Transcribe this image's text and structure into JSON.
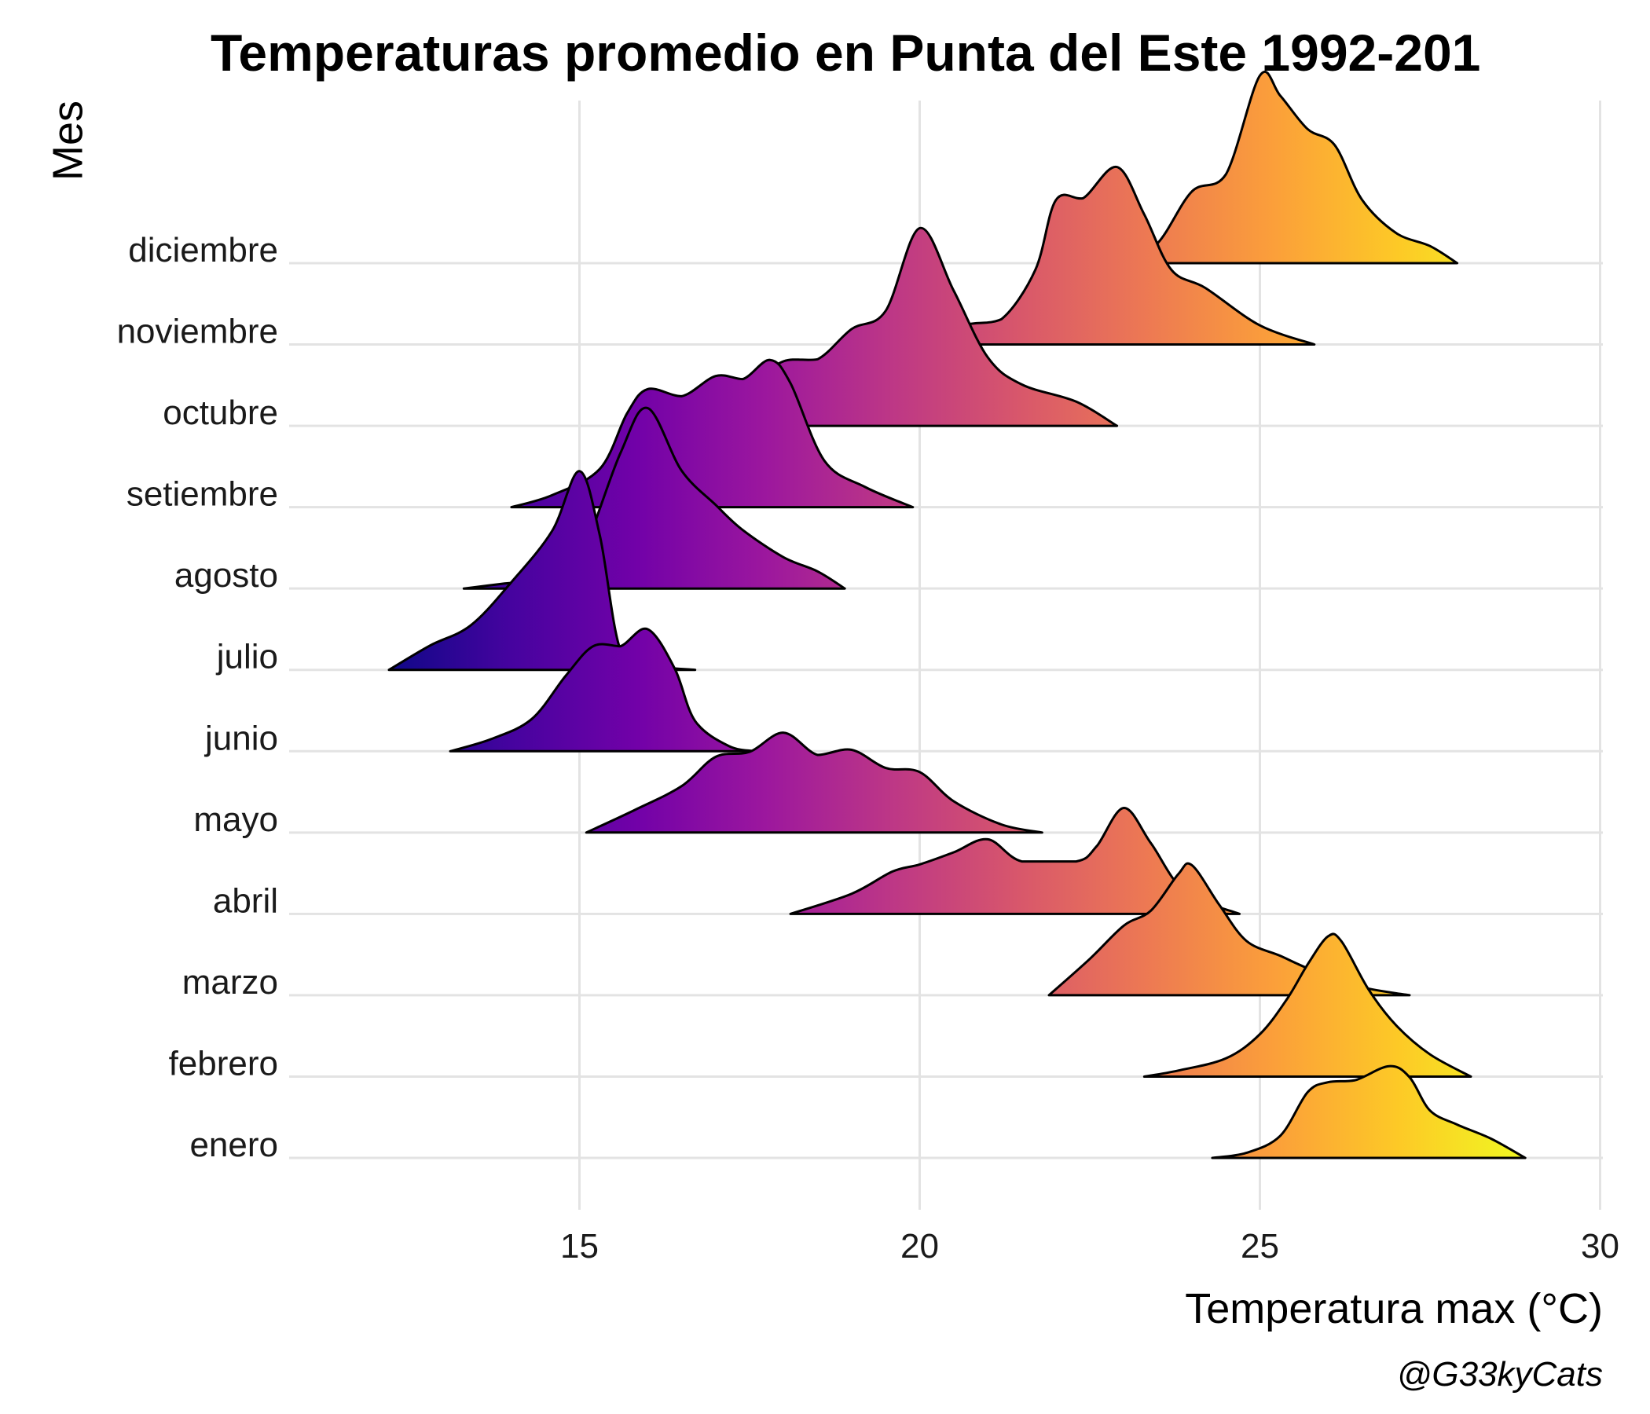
{
  "chart_data": {
    "type": "ridgeline",
    "title": "Temperaturas promedio en Punta del Este 1992-201",
    "xlabel": "Temperatura max (°C)",
    "ylabel": "Mes",
    "caption": "@G33kyCats",
    "x_ticks": [
      15,
      20,
      25,
      30
    ],
    "xlim": [
      10.8,
      30.2
    ],
    "grid": true,
    "colormap": "plasma",
    "categories": [
      "enero",
      "febrero",
      "marzo",
      "abril",
      "mayo",
      "junio",
      "julio",
      "agosto",
      "setiembre",
      "octubre",
      "noviembre",
      "diciembre"
    ],
    "series": [
      {
        "name": "enero",
        "density": [
          [
            24.3,
            0
          ],
          [
            24.8,
            0.05
          ],
          [
            25.3,
            0.22
          ],
          [
            25.7,
            0.65
          ],
          [
            26.0,
            0.75
          ],
          [
            26.4,
            0.77
          ],
          [
            26.9,
            0.91
          ],
          [
            27.2,
            0.8
          ],
          [
            27.5,
            0.47
          ],
          [
            27.9,
            0.33
          ],
          [
            28.4,
            0.19
          ],
          [
            28.9,
            0
          ]
        ]
      },
      {
        "name": "febrero",
        "density": [
          [
            23.3,
            0
          ],
          [
            23.8,
            0.06
          ],
          [
            24.5,
            0.18
          ],
          [
            25.0,
            0.42
          ],
          [
            25.4,
            0.77
          ],
          [
            25.7,
            1.11
          ],
          [
            26.0,
            1.39
          ],
          [
            26.2,
            1.34
          ],
          [
            26.6,
            0.86
          ],
          [
            27.0,
            0.51
          ],
          [
            27.5,
            0.22
          ],
          [
            28.1,
            0
          ]
        ]
      },
      {
        "name": "marzo",
        "density": [
          [
            21.9,
            0
          ],
          [
            22.5,
            0.36
          ],
          [
            23.0,
            0.69
          ],
          [
            23.4,
            0.84
          ],
          [
            23.8,
            1.2
          ],
          [
            24.0,
            1.29
          ],
          [
            24.4,
            0.9
          ],
          [
            24.8,
            0.54
          ],
          [
            25.3,
            0.39
          ],
          [
            25.8,
            0.24
          ],
          [
            26.5,
            0.08
          ],
          [
            27.2,
            0
          ]
        ]
      },
      {
        "name": "abril",
        "density": [
          [
            18.1,
            0
          ],
          [
            19.0,
            0.2
          ],
          [
            19.6,
            0.42
          ],
          [
            20.0,
            0.49
          ],
          [
            20.5,
            0.61
          ],
          [
            21.0,
            0.74
          ],
          [
            21.5,
            0.52
          ],
          [
            22.3,
            0.52
          ],
          [
            22.6,
            0.67
          ],
          [
            23.0,
            1.05
          ],
          [
            23.4,
            0.7
          ],
          [
            23.9,
            0.22
          ],
          [
            24.7,
            0
          ]
        ]
      },
      {
        "name": "mayo",
        "density": [
          [
            15.1,
            0
          ],
          [
            15.8,
            0.22
          ],
          [
            16.5,
            0.46
          ],
          [
            17.0,
            0.75
          ],
          [
            17.5,
            0.8
          ],
          [
            18.0,
            0.99
          ],
          [
            18.5,
            0.77
          ],
          [
            19.0,
            0.82
          ],
          [
            19.5,
            0.64
          ],
          [
            20.0,
            0.6
          ],
          [
            20.5,
            0.31
          ],
          [
            21.2,
            0.08
          ],
          [
            21.8,
            0
          ]
        ]
      },
      {
        "name": "junio",
        "density": [
          [
            13.1,
            0
          ],
          [
            13.7,
            0.12
          ],
          [
            14.3,
            0.32
          ],
          [
            14.8,
            0.75
          ],
          [
            15.2,
            1.04
          ],
          [
            15.6,
            1.04
          ],
          [
            16.0,
            1.21
          ],
          [
            16.4,
            0.82
          ],
          [
            16.7,
            0.3
          ],
          [
            17.2,
            0.05
          ],
          [
            17.6,
            0
          ]
        ]
      },
      {
        "name": "julio",
        "density": [
          [
            12.2,
            0
          ],
          [
            12.8,
            0.24
          ],
          [
            13.4,
            0.44
          ],
          [
            14.0,
            0.87
          ],
          [
            14.6,
            1.38
          ],
          [
            15.0,
            1.97
          ],
          [
            15.3,
            1.33
          ],
          [
            15.6,
            0.2
          ],
          [
            16.0,
            0.05
          ],
          [
            16.7,
            0
          ]
        ]
      },
      {
        "name": "agosto",
        "density": [
          [
            13.3,
            0
          ],
          [
            13.9,
            0.05
          ],
          [
            14.5,
            0.1
          ],
          [
            15.0,
            0.3
          ],
          [
            15.6,
            1.34
          ],
          [
            16.0,
            1.79
          ],
          [
            16.5,
            1.17
          ],
          [
            17.0,
            0.83
          ],
          [
            17.4,
            0.58
          ],
          [
            18.0,
            0.31
          ],
          [
            18.5,
            0.17
          ],
          [
            18.9,
            0
          ]
        ]
      },
      {
        "name": "setiembre",
        "density": [
          [
            14.0,
            0
          ],
          [
            14.6,
            0.12
          ],
          [
            15.3,
            0.38
          ],
          [
            15.7,
            0.93
          ],
          [
            16.0,
            1.17
          ],
          [
            16.5,
            1.1
          ],
          [
            17.0,
            1.3
          ],
          [
            17.4,
            1.27
          ],
          [
            17.8,
            1.46
          ],
          [
            18.1,
            1.23
          ],
          [
            18.6,
            0.46
          ],
          [
            19.2,
            0.2
          ],
          [
            19.9,
            0
          ]
        ]
      },
      {
        "name": "octubre",
        "density": [
          [
            16.5,
            0
          ],
          [
            17.0,
            0.14
          ],
          [
            17.6,
            0.44
          ],
          [
            18.0,
            0.64
          ],
          [
            18.5,
            0.66
          ],
          [
            19.0,
            0.96
          ],
          [
            19.5,
            1.14
          ],
          [
            20.0,
            1.96
          ],
          [
            20.5,
            1.34
          ],
          [
            21.0,
            0.68
          ],
          [
            21.5,
            0.41
          ],
          [
            22.3,
            0.24
          ],
          [
            22.9,
            0
          ]
        ]
      },
      {
        "name": "noviembre",
        "density": [
          [
            19.5,
            0
          ],
          [
            20.2,
            0.1
          ],
          [
            20.7,
            0.2
          ],
          [
            21.2,
            0.25
          ],
          [
            21.7,
            0.74
          ],
          [
            22.0,
            1.43
          ],
          [
            22.4,
            1.45
          ],
          [
            22.9,
            1.76
          ],
          [
            23.3,
            1.29
          ],
          [
            23.7,
            0.74
          ],
          [
            24.2,
            0.56
          ],
          [
            25.0,
            0.19
          ],
          [
            25.8,
            0
          ]
        ]
      },
      {
        "name": "diciembre",
        "density": [
          [
            23.0,
            0
          ],
          [
            23.5,
            0.2
          ],
          [
            24.0,
            0.71
          ],
          [
            24.5,
            0.88
          ],
          [
            25.0,
            1.86
          ],
          [
            25.3,
            1.66
          ],
          [
            25.7,
            1.33
          ],
          [
            26.1,
            1.17
          ],
          [
            26.5,
            0.63
          ],
          [
            27.0,
            0.3
          ],
          [
            27.5,
            0.17
          ],
          [
            27.9,
            0
          ]
        ]
      }
    ]
  }
}
